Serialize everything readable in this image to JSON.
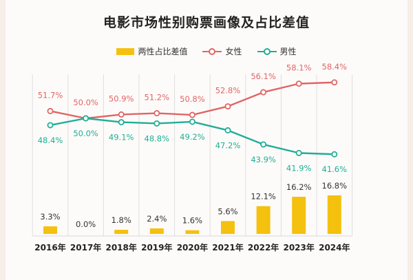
{
  "title": "电影市场性别购票画像及占比差值",
  "legend": [
    {
      "label": "两性占比差值",
      "kind": "bar",
      "color": "#f5c10f"
    },
    {
      "label": "女性",
      "kind": "line",
      "color": "#e06566"
    },
    {
      "label": "男性",
      "kind": "line",
      "color": "#1fae97"
    }
  ],
  "chart_data": {
    "type": "bar",
    "categories": [
      "2016年",
      "2017年",
      "2018年",
      "2019年",
      "2020年",
      "2021年",
      "2022年",
      "2023年",
      "2024年"
    ],
    "series": [
      {
        "name": "女性",
        "type": "line",
        "color": "#e06566",
        "values": [
          51.7,
          50.0,
          50.9,
          51.2,
          50.8,
          52.8,
          56.1,
          58.1,
          58.4
        ],
        "labels": [
          "51.7%",
          "50.0%",
          "50.9%",
          "51.2%",
          "50.8%",
          "52.8%",
          "56.1%",
          "58.1%",
          "58.4%"
        ]
      },
      {
        "name": "男性",
        "type": "line",
        "color": "#1fae97",
        "values": [
          48.4,
          50.0,
          49.1,
          48.8,
          49.2,
          47.2,
          43.9,
          41.9,
          41.6
        ],
        "labels": [
          "48.4%",
          "50.0%",
          "49.1%",
          "48.8%",
          "49.2%",
          "47.2%",
          "43.9%",
          "41.9%",
          "41.6%"
        ]
      },
      {
        "name": "两性占比差值",
        "type": "bar",
        "color": "#f5c10f",
        "values": [
          3.3,
          0.0,
          1.8,
          2.4,
          1.6,
          5.6,
          12.1,
          16.2,
          16.8
        ],
        "labels": [
          "3.3%",
          "0.0%",
          "1.8%",
          "2.4%",
          "1.6%",
          "5.6%",
          "12.1%",
          "16.2%",
          "16.8%"
        ]
      }
    ],
    "grid": "vertical"
  }
}
